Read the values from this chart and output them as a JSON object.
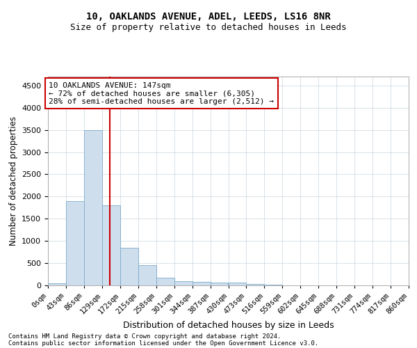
{
  "title_line1": "10, OAKLANDS AVENUE, ADEL, LEEDS, LS16 8NR",
  "title_line2": "Size of property relative to detached houses in Leeds",
  "xlabel": "Distribution of detached houses by size in Leeds",
  "ylabel": "Number of detached properties",
  "bar_color": "#cfdeed",
  "bar_edge_color": "#7aaaca",
  "bin_edges": [
    0,
    43,
    86,
    129,
    172,
    215,
    258,
    301,
    344,
    387,
    430,
    473,
    516,
    559,
    602,
    645,
    688,
    731,
    774,
    817,
    860
  ],
  "bar_heights": [
    50,
    1900,
    3500,
    1800,
    850,
    450,
    165,
    100,
    75,
    60,
    55,
    25,
    8,
    4,
    2,
    1,
    1,
    0,
    0,
    0
  ],
  "property_size": 147,
  "vline_color": "#cc0000",
  "annotation_box_color": "#cc0000",
  "annotation_text_line1": "10 OAKLANDS AVENUE: 147sqm",
  "annotation_text_line2": "← 72% of detached houses are smaller (6,305)",
  "annotation_text_line3": "28% of semi-detached houses are larger (2,512) →",
  "ylim_max": 4700,
  "ytick_max": 4500,
  "ytick_step": 500,
  "footer_line1": "Contains HM Land Registry data © Crown copyright and database right 2024.",
  "footer_line2": "Contains public sector information licensed under the Open Government Licence v3.0.",
  "background_color": "#ffffff",
  "grid_color": "#c8d4de"
}
